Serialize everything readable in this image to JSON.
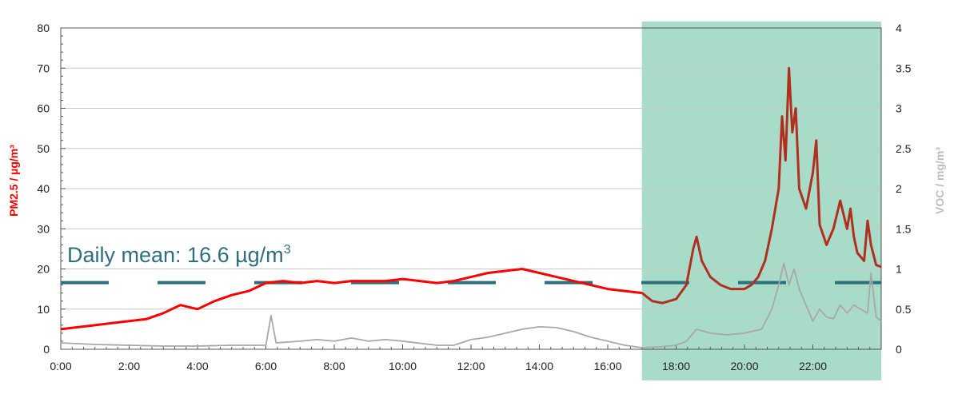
{
  "chart_data": {
    "type": "line",
    "title": "",
    "xlabel": "",
    "x_range_hours": [
      0,
      24
    ],
    "x_tick_labels": [
      "0:00",
      "2:00",
      "4:00",
      "6:00",
      "8:00",
      "10:00",
      "12:00",
      "14:00",
      "16:00",
      "18:00",
      "20:00",
      "22:00"
    ],
    "y_left": {
      "label": "PM2.5 / µg/m³",
      "range": [
        0,
        80
      ],
      "ticks": [
        "0",
        "10",
        "20",
        "30",
        "40",
        "50",
        "60",
        "70",
        "80"
      ]
    },
    "y_right": {
      "label": "VOC / mg/m³",
      "range": [
        0,
        4
      ],
      "ticks": [
        "0",
        "0.5",
        "1",
        "1.5",
        "2",
        "2.5",
        "3",
        "3.5",
        "4"
      ]
    },
    "grid": "horizontal",
    "highlight": {
      "x_start_hours": 17.0,
      "x_end_hours": 24.0,
      "color": "#a8dcc8"
    },
    "mean_line": {
      "value": 16.6,
      "style": "dashed",
      "color": "#2e6f7e",
      "label": "Daily mean: 16.6 µg/m",
      "label_sup": "3"
    },
    "series": [
      {
        "axis": "left",
        "color": "#ff0000",
        "color_in_highlight": "#b03020",
        "points": [
          [
            0,
            5
          ],
          [
            0.5,
            5.5
          ],
          [
            1,
            6
          ],
          [
            1.5,
            6.5
          ],
          [
            2,
            7
          ],
          [
            2.5,
            7.5
          ],
          [
            3,
            9
          ],
          [
            3.5,
            11
          ],
          [
            4,
            10
          ],
          [
            4.5,
            12
          ],
          [
            5,
            13.5
          ],
          [
            5.5,
            14.5
          ],
          [
            6,
            16.5
          ],
          [
            6.5,
            17
          ],
          [
            7,
            16.5
          ],
          [
            7.5,
            17
          ],
          [
            8,
            16.5
          ],
          [
            8.5,
            17
          ],
          [
            9,
            17
          ],
          [
            9.5,
            17
          ],
          [
            10,
            17.5
          ],
          [
            10.5,
            17
          ],
          [
            11,
            16.5
          ],
          [
            11.5,
            17
          ],
          [
            12,
            18
          ],
          [
            12.5,
            19
          ],
          [
            13,
            19.5
          ],
          [
            13.5,
            20
          ],
          [
            14,
            19
          ],
          [
            14.5,
            18
          ],
          [
            15,
            17
          ],
          [
            15.5,
            16
          ],
          [
            16,
            15
          ],
          [
            16.5,
            14.5
          ],
          [
            17,
            14
          ],
          [
            17.3,
            12
          ],
          [
            17.6,
            11.5
          ],
          [
            18,
            12.5
          ],
          [
            18.3,
            16
          ],
          [
            18.5,
            25
          ],
          [
            18.6,
            28
          ],
          [
            18.75,
            22
          ],
          [
            19,
            18
          ],
          [
            19.3,
            16
          ],
          [
            19.6,
            15
          ],
          [
            20,
            15
          ],
          [
            20.2,
            16
          ],
          [
            20.4,
            18
          ],
          [
            20.6,
            22
          ],
          [
            20.8,
            30
          ],
          [
            21.0,
            40
          ],
          [
            21.1,
            58
          ],
          [
            21.2,
            47
          ],
          [
            21.3,
            70
          ],
          [
            21.4,
            54
          ],
          [
            21.5,
            60
          ],
          [
            21.6,
            40
          ],
          [
            21.8,
            35
          ],
          [
            22.0,
            44
          ],
          [
            22.1,
            52
          ],
          [
            22.2,
            31
          ],
          [
            22.4,
            26
          ],
          [
            22.6,
            30
          ],
          [
            22.8,
            37
          ],
          [
            23.0,
            30
          ],
          [
            23.1,
            35
          ],
          [
            23.2,
            28
          ],
          [
            23.3,
            24
          ],
          [
            23.5,
            22
          ],
          [
            23.6,
            32
          ],
          [
            23.7,
            26
          ],
          [
            23.85,
            21
          ],
          [
            24,
            20.5
          ]
        ]
      },
      {
        "axis": "right",
        "color": "#a8a8a8",
        "points": [
          [
            0,
            0.08
          ],
          [
            1,
            0.06
          ],
          [
            2,
            0.05
          ],
          [
            3,
            0.04
          ],
          [
            4,
            0.04
          ],
          [
            5,
            0.05
          ],
          [
            6,
            0.05
          ],
          [
            6.15,
            0.42
          ],
          [
            6.3,
            0.08
          ],
          [
            7,
            0.1
          ],
          [
            7.5,
            0.12
          ],
          [
            8,
            0.1
          ],
          [
            8.5,
            0.14
          ],
          [
            9,
            0.1
          ],
          [
            9.5,
            0.12
          ],
          [
            10,
            0.1
          ],
          [
            11,
            0.05
          ],
          [
            11.5,
            0.05
          ],
          [
            12,
            0.12
          ],
          [
            12.5,
            0.15
          ],
          [
            13,
            0.2
          ],
          [
            13.5,
            0.25
          ],
          [
            14,
            0.28
          ],
          [
            14.5,
            0.27
          ],
          [
            15,
            0.22
          ],
          [
            15.5,
            0.15
          ],
          [
            16,
            0.1
          ],
          [
            16.5,
            0.05
          ],
          [
            17,
            0.02
          ],
          [
            17.5,
            0.03
          ],
          [
            18,
            0.05
          ],
          [
            18.3,
            0.1
          ],
          [
            18.6,
            0.25
          ],
          [
            19,
            0.2
          ],
          [
            19.5,
            0.18
          ],
          [
            20,
            0.2
          ],
          [
            20.5,
            0.25
          ],
          [
            20.8,
            0.5
          ],
          [
            21.0,
            0.8
          ],
          [
            21.15,
            1.07
          ],
          [
            21.3,
            0.8
          ],
          [
            21.45,
            1.0
          ],
          [
            21.6,
            0.75
          ],
          [
            22,
            0.35
          ],
          [
            22.2,
            0.5
          ],
          [
            22.4,
            0.4
          ],
          [
            22.6,
            0.38
          ],
          [
            22.8,
            0.55
          ],
          [
            23.0,
            0.45
          ],
          [
            23.2,
            0.55
          ],
          [
            23.4,
            0.5
          ],
          [
            23.6,
            0.45
          ],
          [
            23.7,
            0.95
          ],
          [
            23.85,
            0.4
          ],
          [
            24,
            0.35
          ]
        ]
      }
    ]
  }
}
